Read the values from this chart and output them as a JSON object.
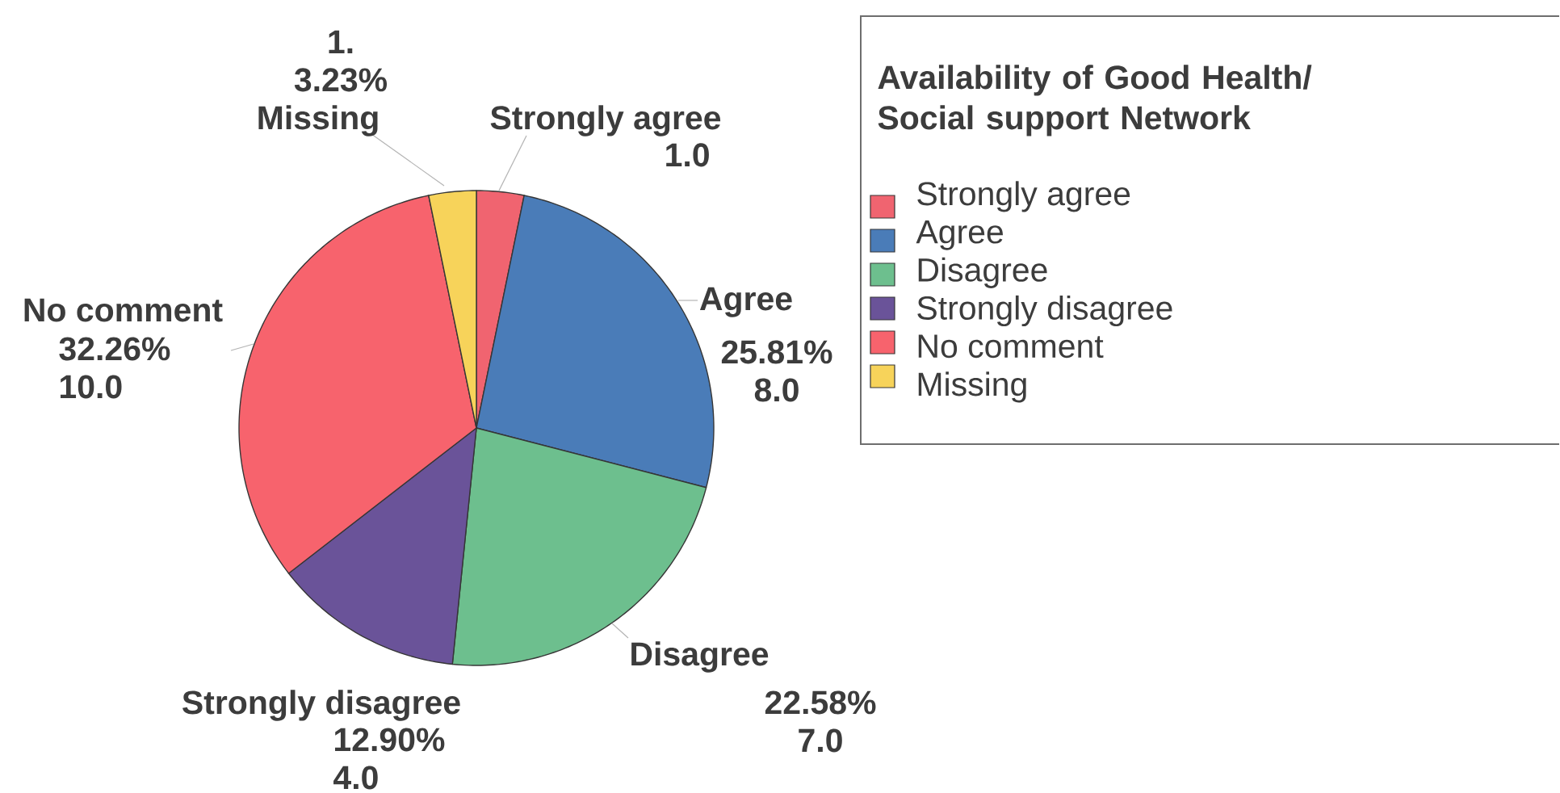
{
  "chart_data": {
    "type": "pie",
    "categories": [
      "Strongly agree",
      "Agree",
      "Disagree",
      "Strongly disagree",
      "No comment",
      "Missing"
    ],
    "values": [
      1,
      8,
      7,
      4,
      10,
      1
    ],
    "colors": [
      "#f06470",
      "#4a7cb8",
      "#6dbf8e",
      "#6a5399",
      "#f7636d",
      "#f7d35a"
    ],
    "value_labels": [
      "1.0",
      "25.81% 8.0",
      "22.58% 7.0",
      "12.90% 4.0",
      "32.26% 10.0",
      "1. 3.23%"
    ],
    "legend_title": "Availability of Good Health/ Social support Network",
    "legend": "right"
  }
}
